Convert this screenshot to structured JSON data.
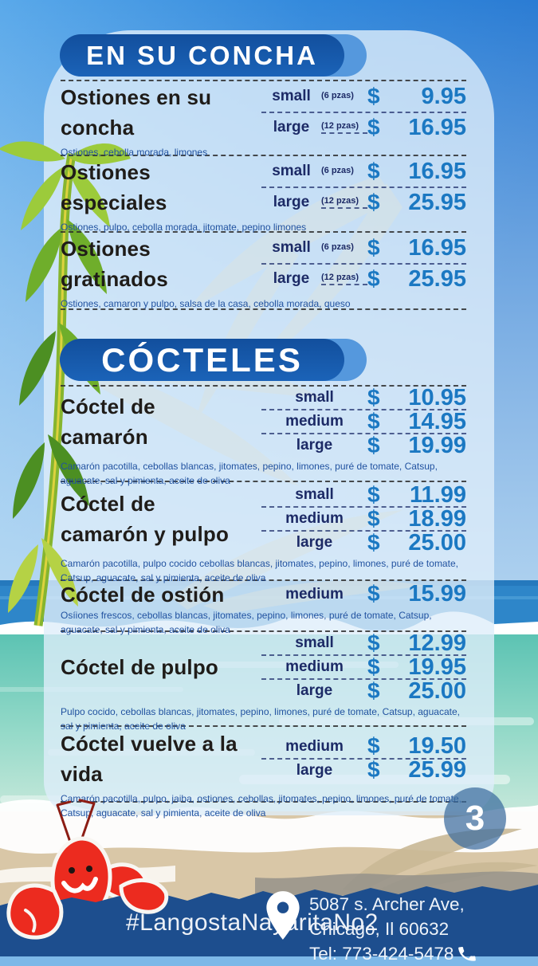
{
  "menu": {
    "currency_symbol": "$",
    "page_number": "3",
    "sections": [
      {
        "title": "EN SU CONCHA",
        "items": [
          {
            "name": "Ostiones en su\nconcha",
            "description": "Ostiones, cebolla morada, limones",
            "prices": [
              {
                "size": "small",
                "note": "(6 pzas)",
                "amount": "9.95"
              },
              {
                "size": "large",
                "note": "(12 pzas)",
                "amount": "16.95"
              }
            ]
          },
          {
            "name": "Ostiones\nespeciales",
            "description": "Ostiones, pulpo, cebolla morada, jitomate, pepino limones",
            "prices": [
              {
                "size": "small",
                "note": "(6 pzas)",
                "amount": "16.95"
              },
              {
                "size": "large",
                "note": "(12 pzas)",
                "amount": "25.95"
              }
            ]
          },
          {
            "name": "Ostiones\ngratinados",
            "description": "Ostiones, camaron y pulpo, salsa de la casa, cebolla morada, queso",
            "prices": [
              {
                "size": "small",
                "note": "(6 pzas)",
                "amount": "16.95"
              },
              {
                "size": "large",
                "note": "(12 pzas)",
                "amount": "25.95"
              }
            ]
          }
        ]
      },
      {
        "title": "CÓCTELES",
        "items": [
          {
            "name": "Cóctel de\ncamarón",
            "description": "Camarón pacotilla, cebollas blancas, jitomates, pepino, limones, puré de tomate, Catsup, aguacate, sal y pimienta, aceite de oliva",
            "prices": [
              {
                "size": "small",
                "amount": "10.95"
              },
              {
                "size": "medium",
                "amount": "14.95"
              },
              {
                "size": "large",
                "amount": "19.99"
              }
            ]
          },
          {
            "name": "Cóctel de\ncamarón y pulpo",
            "description": "Camarón pacotilla, pulpo cocido cebollas blancas, jitomates, pepino, limones, puré de tomate, Catsup, aguacate, sal y pimienta, aceite de oliva",
            "prices": [
              {
                "size": "small",
                "amount": "11.99"
              },
              {
                "size": "medium",
                "amount": "18.99"
              },
              {
                "size": "large",
                "amount": "25.00"
              }
            ]
          },
          {
            "name": "Cóctel de ostión",
            "description": "Osíiones frescos, cebollas blancas, jitomates, pepino, limones, puré de tomate, Catsup, aguacate, sal y pimienta, aceite de oliva",
            "prices": [
              {
                "size": "medium",
                "amount": "15.99"
              }
            ]
          },
          {
            "name": "Cóctel de pulpo",
            "description": "Pulpo cocido, cebollas blancas, jitomates, pepino, limones, puré de tomate, Catsup, aguacate, sal y pimienta, aceite de oliva",
            "prices": [
              {
                "size": "small",
                "amount": "12.99"
              },
              {
                "size": "medium",
                "amount": "19.95"
              },
              {
                "size": "large",
                "amount": "25.00"
              }
            ]
          },
          {
            "name": "Cóctel vuelve a la\nvida",
            "description": "Camarón pacotilla, pulpo, jaiba, ostiones, cebollas, jitomates, pepino, limones, puré de tomate, Catsup, aguacate, sal y pimienta, aceite de oliva",
            "prices": [
              {
                "size": "medium",
                "amount": "19.50"
              },
              {
                "size": "large",
                "amount": "25.99"
              }
            ]
          }
        ]
      }
    ]
  },
  "footer": {
    "hashtag": "#LangostaNayaritaNo2",
    "address": "5087 s. Archer Ave, Chicago, Il 60632",
    "phone": "Tel: 773-424-5478"
  },
  "colors": {
    "header_pill_blue": "#124f9d",
    "price_blue": "#1b78c2",
    "size_navy": "#1c2a66",
    "description_blue": "#2152a0",
    "footer_band_blue": "#1d4e8e",
    "ocean_teal": "#62c6b6",
    "sand_tan": "#d9c7a7",
    "lobster_red": "#ec2b1f"
  }
}
